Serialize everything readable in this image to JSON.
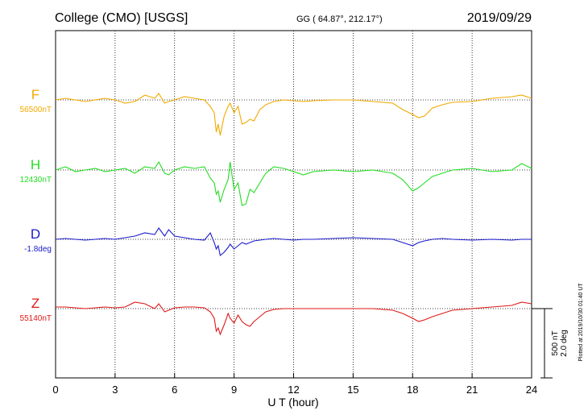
{
  "header": {
    "station": "College (CMO)  [USGS]",
    "coords": "GG ( 64.87°, 212.17°)",
    "date": "2019/09/29"
  },
  "chart_data": {
    "type": "line",
    "xlabel": "U T (hour)",
    "xlim": [
      0,
      24
    ],
    "xticks": [
      0,
      3,
      6,
      9,
      12,
      15,
      18,
      21,
      24
    ],
    "grid": true,
    "series": [
      {
        "name": "F",
        "baseline_label": "56500nT",
        "color": "#f2a900",
        "points": [
          [
            0,
            0
          ],
          [
            0.5,
            10
          ],
          [
            1,
            0
          ],
          [
            1.5,
            -10
          ],
          [
            2,
            0
          ],
          [
            2.5,
            10
          ],
          [
            3,
            0
          ],
          [
            3.5,
            -20
          ],
          [
            4,
            -10
          ],
          [
            4.5,
            30
          ],
          [
            5,
            10
          ],
          [
            5.2,
            40
          ],
          [
            5.5,
            -20
          ],
          [
            5.7,
            -10
          ],
          [
            6,
            0
          ],
          [
            6.5,
            20
          ],
          [
            7,
            10
          ],
          [
            7.5,
            0
          ],
          [
            7.8,
            -40
          ],
          [
            8,
            -80
          ],
          [
            8.1,
            -200
          ],
          [
            8.2,
            -150
          ],
          [
            8.3,
            -220
          ],
          [
            8.5,
            -100
          ],
          [
            8.7,
            -40
          ],
          [
            8.8,
            -20
          ],
          [
            9,
            -80
          ],
          [
            9.2,
            -40
          ],
          [
            9.4,
            -150
          ],
          [
            9.6,
            -140
          ],
          [
            9.8,
            -120
          ],
          [
            10,
            -130
          ],
          [
            10.3,
            -60
          ],
          [
            10.6,
            -30
          ],
          [
            11,
            -10
          ],
          [
            11.5,
            0
          ],
          [
            12,
            -5
          ],
          [
            12.5,
            -10
          ],
          [
            13,
            -5
          ],
          [
            14,
            0
          ],
          [
            15,
            0
          ],
          [
            16,
            -10
          ],
          [
            17,
            -20
          ],
          [
            17.5,
            -60
          ],
          [
            18,
            -90
          ],
          [
            18.3,
            -110
          ],
          [
            18.6,
            -100
          ],
          [
            19,
            -50
          ],
          [
            19.5,
            -30
          ],
          [
            20,
            -15
          ],
          [
            21,
            -10
          ],
          [
            22,
            10
          ],
          [
            23,
            20
          ],
          [
            23.5,
            30
          ],
          [
            24,
            10
          ]
        ]
      },
      {
        "name": "H",
        "baseline_label": "12430nT",
        "color": "#22dd22",
        "points": [
          [
            0,
            0
          ],
          [
            0.5,
            20
          ],
          [
            1,
            -10
          ],
          [
            1.5,
            0
          ],
          [
            2,
            10
          ],
          [
            2.5,
            -10
          ],
          [
            3,
            0
          ],
          [
            3.5,
            10
          ],
          [
            4,
            -20
          ],
          [
            4.5,
            20
          ],
          [
            5,
            10
          ],
          [
            5.2,
            50
          ],
          [
            5.5,
            -20
          ],
          [
            5.7,
            -30
          ],
          [
            6,
            0
          ],
          [
            6.5,
            20
          ],
          [
            7,
            10
          ],
          [
            7.5,
            20
          ],
          [
            7.8,
            -50
          ],
          [
            8,
            -80
          ],
          [
            8.1,
            -150
          ],
          [
            8.2,
            -130
          ],
          [
            8.3,
            -200
          ],
          [
            8.5,
            -120
          ],
          [
            8.7,
            -60
          ],
          [
            8.8,
            50
          ],
          [
            9,
            -120
          ],
          [
            9.2,
            -80
          ],
          [
            9.4,
            -220
          ],
          [
            9.6,
            -210
          ],
          [
            9.8,
            -120
          ],
          [
            10,
            -140
          ],
          [
            10.3,
            -80
          ],
          [
            10.6,
            -20
          ],
          [
            11,
            20
          ],
          [
            11.5,
            10
          ],
          [
            12,
            -10
          ],
          [
            12.5,
            -30
          ],
          [
            13,
            -10
          ],
          [
            14,
            0
          ],
          [
            15,
            -10
          ],
          [
            16,
            0
          ],
          [
            17,
            -20
          ],
          [
            17.5,
            -60
          ],
          [
            18,
            -130
          ],
          [
            18.3,
            -110
          ],
          [
            18.6,
            -80
          ],
          [
            19,
            -40
          ],
          [
            19.5,
            -20
          ],
          [
            20,
            0
          ],
          [
            21,
            10
          ],
          [
            22,
            -10
          ],
          [
            23,
            0
          ],
          [
            23.5,
            40
          ],
          [
            24,
            10
          ]
        ]
      },
      {
        "name": "D",
        "baseline_label": "-1.8deg",
        "color": "#1a1acc",
        "points": [
          [
            0,
            0
          ],
          [
            0.5,
            5
          ],
          [
            1,
            0
          ],
          [
            1.5,
            -5
          ],
          [
            2,
            0
          ],
          [
            2.5,
            5
          ],
          [
            3,
            0
          ],
          [
            3.5,
            10
          ],
          [
            4,
            20
          ],
          [
            4.5,
            40
          ],
          [
            5,
            30
          ],
          [
            5.2,
            70
          ],
          [
            5.5,
            20
          ],
          [
            5.7,
            60
          ],
          [
            6,
            20
          ],
          [
            6.5,
            10
          ],
          [
            7,
            0
          ],
          [
            7.5,
            -5
          ],
          [
            7.8,
            40
          ],
          [
            8,
            -20
          ],
          [
            8.1,
            -60
          ],
          [
            8.2,
            -40
          ],
          [
            8.3,
            -100
          ],
          [
            8.5,
            -80
          ],
          [
            8.7,
            -50
          ],
          [
            8.8,
            -30
          ],
          [
            9,
            -60
          ],
          [
            9.2,
            -40
          ],
          [
            9.4,
            -20
          ],
          [
            9.6,
            -30
          ],
          [
            9.8,
            -20
          ],
          [
            10,
            -10
          ],
          [
            10.3,
            -5
          ],
          [
            10.6,
            0
          ],
          [
            11,
            5
          ],
          [
            11.5,
            0
          ],
          [
            12,
            -5
          ],
          [
            12.5,
            0
          ],
          [
            13,
            0
          ],
          [
            14,
            5
          ],
          [
            15,
            10
          ],
          [
            16,
            5
          ],
          [
            17,
            0
          ],
          [
            17.5,
            -20
          ],
          [
            18,
            -40
          ],
          [
            18.3,
            -20
          ],
          [
            18.6,
            -10
          ],
          [
            19,
            0
          ],
          [
            19.5,
            5
          ],
          [
            20,
            0
          ],
          [
            21,
            -5
          ],
          [
            22,
            0
          ],
          [
            23,
            -5
          ],
          [
            23.5,
            0
          ],
          [
            24,
            0
          ]
        ]
      },
      {
        "name": "Z",
        "baseline_label": "55140nT",
        "color": "#e01818",
        "points": [
          [
            0,
            10
          ],
          [
            0.5,
            10
          ],
          [
            1,
            5
          ],
          [
            1.5,
            0
          ],
          [
            2,
            5
          ],
          [
            2.5,
            10
          ],
          [
            3,
            5
          ],
          [
            3.5,
            10
          ],
          [
            4,
            40
          ],
          [
            4.5,
            30
          ],
          [
            5,
            0
          ],
          [
            5.2,
            30
          ],
          [
            5.5,
            -20
          ],
          [
            5.7,
            -10
          ],
          [
            6,
            5
          ],
          [
            6.5,
            10
          ],
          [
            7,
            10
          ],
          [
            7.5,
            5
          ],
          [
            7.8,
            -20
          ],
          [
            8,
            -60
          ],
          [
            8.1,
            -140
          ],
          [
            8.2,
            -120
          ],
          [
            8.3,
            -160
          ],
          [
            8.5,
            -100
          ],
          [
            8.7,
            -30
          ],
          [
            8.8,
            -60
          ],
          [
            9,
            -90
          ],
          [
            9.2,
            -40
          ],
          [
            9.4,
            -80
          ],
          [
            9.6,
            -100
          ],
          [
            9.8,
            -110
          ],
          [
            10,
            -80
          ],
          [
            10.3,
            -50
          ],
          [
            10.6,
            -20
          ],
          [
            11,
            -5
          ],
          [
            11.5,
            0
          ],
          [
            12,
            0
          ],
          [
            12.5,
            0
          ],
          [
            13,
            0
          ],
          [
            14,
            0
          ],
          [
            15,
            0
          ],
          [
            16,
            0
          ],
          [
            17,
            -10
          ],
          [
            17.5,
            -30
          ],
          [
            18,
            -60
          ],
          [
            18.3,
            -80
          ],
          [
            18.6,
            -70
          ],
          [
            19,
            -50
          ],
          [
            19.5,
            -30
          ],
          [
            20,
            -10
          ],
          [
            21,
            0
          ],
          [
            22,
            10
          ],
          [
            23,
            20
          ],
          [
            23.5,
            40
          ],
          [
            24,
            30
          ]
        ]
      }
    ]
  },
  "scale_bar": {
    "nt": "500 nT",
    "deg": "2.0 deg"
  },
  "footnote": "Plotted at 2019/10/30 01:40 UT"
}
